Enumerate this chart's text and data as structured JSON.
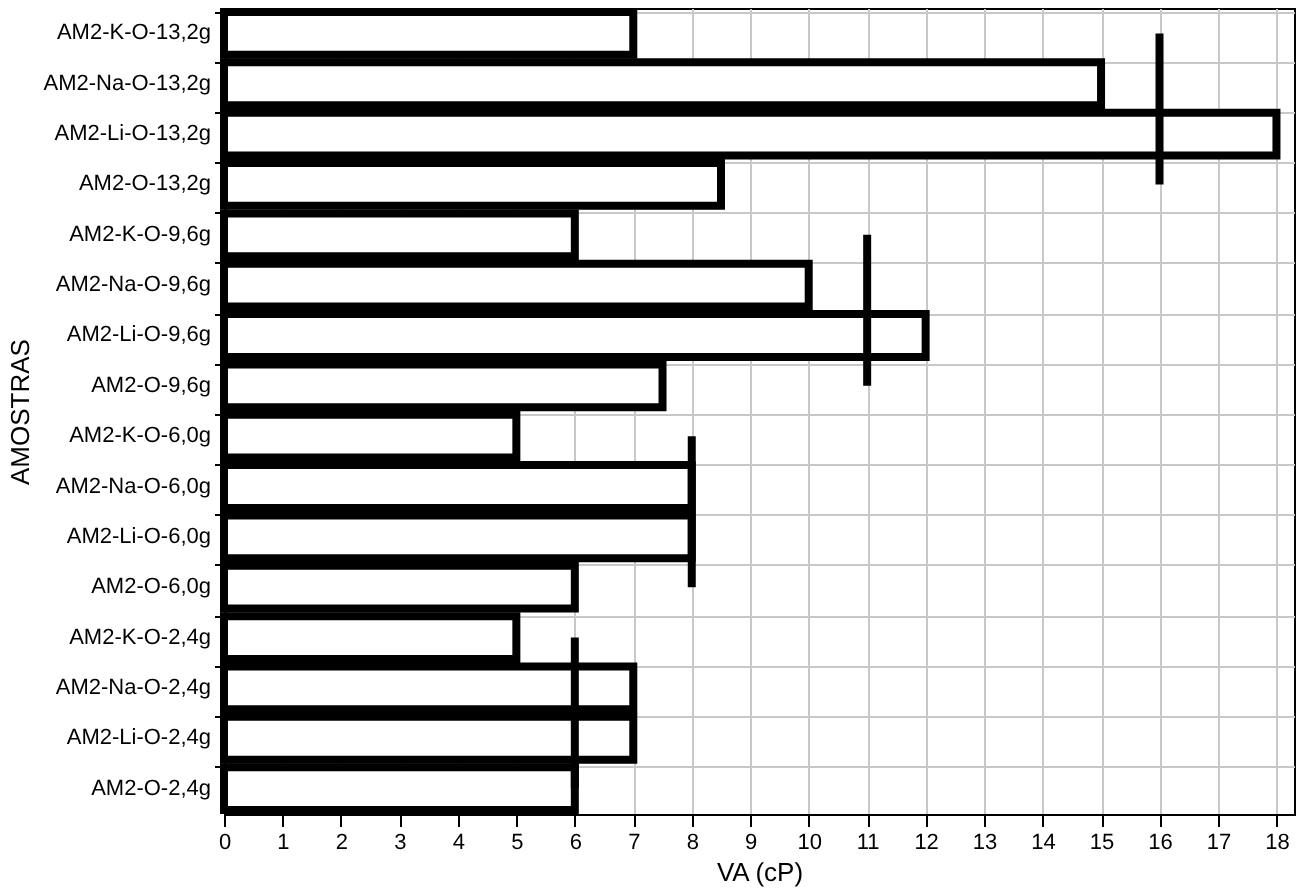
{
  "chart_data": {
    "type": "bar",
    "orientation": "horizontal",
    "xlabel": "VA (cP)",
    "ylabel": "AMOSTRAS",
    "categories": [
      "AM2-K-O-13,2g",
      "AM2-Na-O-13,2g",
      "AM2-Li-O-13,2g",
      "AM2-O-13,2g",
      "AM2-K-O-9,6g",
      "AM2-Na-O-9,6g",
      "AM2-Li-O-9,6g",
      "AM2-O-9,6g",
      "AM2-K-O-6,0g",
      "AM2-Na-O-6,0g",
      "AM2-Li-O-6,0g",
      "AM2-O-6,0g",
      "AM2-K-O-2,4g",
      "AM2-Na-O-2,4g",
      "AM2-Li-O-2,4g",
      "AM2-O-2,4g"
    ],
    "series": [
      {
        "color": "#ffffff",
        "values": [
          7,
          15,
          18,
          8.5,
          6,
          10,
          12,
          7.5,
          5,
          8,
          8,
          6,
          5,
          7,
          7,
          6
        ]
      },
      {
        "type": "line",
        "color": "#000000",
        "values": [
          16,
          16,
          16,
          16,
          null,
          null,
          null,
          null,
          null,
          null,
          null,
          null,
          null,
          null,
          null,
          null
        ]
      },
      {
        "type": "line",
        "color": "#000000",
        "values": [
          null,
          null,
          null,
          null,
          11,
          11,
          11,
          11,
          null,
          null,
          null,
          null,
          null,
          null,
          null,
          null
        ]
      },
      {
        "type": "line",
        "color": "#000000",
        "values": [
          null,
          null,
          null,
          null,
          null,
          null,
          null,
          null,
          8,
          8,
          8,
          8,
          null,
          null,
          null,
          null
        ]
      },
      {
        "type": "line",
        "color": "#000000",
        "values": [
          null,
          null,
          null,
          null,
          null,
          null,
          null,
          null,
          null,
          null,
          null,
          null,
          6,
          6,
          6,
          6
        ]
      }
    ],
    "xlim": [
      0,
      18.3
    ],
    "xticks": [
      0,
      1,
      2,
      3,
      4,
      5,
      6,
      7,
      8,
      9,
      10,
      11,
      12,
      13,
      14,
      15,
      16,
      17,
      18
    ],
    "grid": true
  }
}
